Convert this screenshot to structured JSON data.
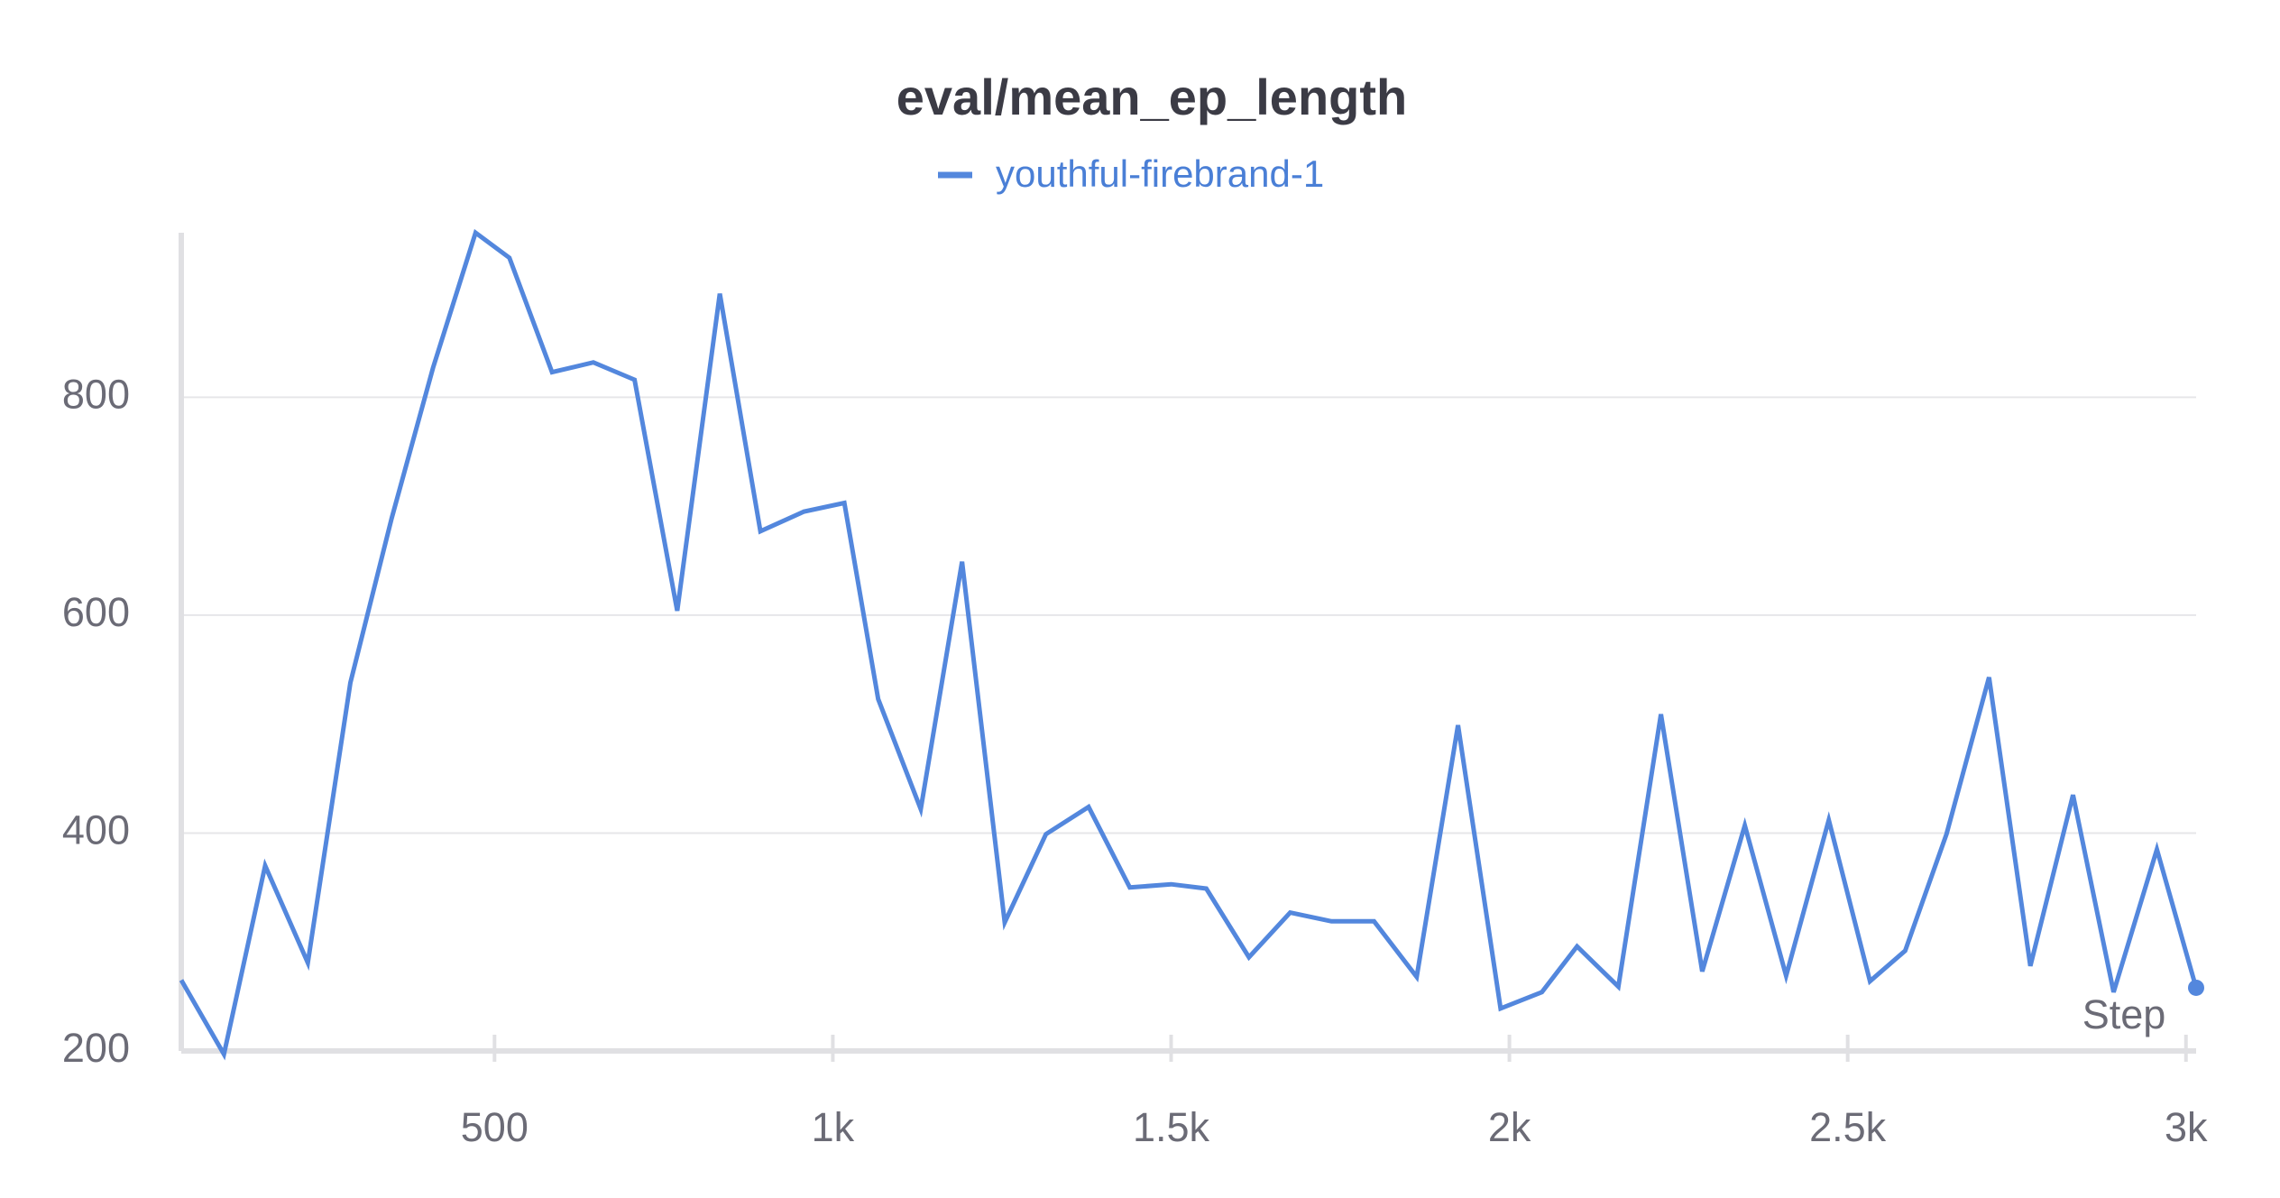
{
  "chart_data": {
    "type": "line",
    "title": "eval/mean_ep_length",
    "x_label": "Step",
    "x": [
      37,
      100,
      161,
      224,
      287,
      348,
      409,
      472,
      522,
      585,
      646,
      707,
      770,
      833,
      893,
      957,
      1017,
      1067,
      1130,
      1191,
      1254,
      1315,
      1378,
      1439,
      1500,
      1552,
      1615,
      1676,
      1737,
      1800,
      1863,
      1924,
      1987,
      2048,
      2100,
      2161,
      2224,
      2285,
      2348,
      2409,
      2472,
      2533,
      2585,
      2646,
      2709,
      2770,
      2833,
      2893,
      2957,
      3015
    ],
    "series": [
      {
        "name": "youthful-firebrand-1",
        "color": "#5387dd",
        "values": [
          265,
          197,
          370,
          281,
          538,
          689,
          827,
          951,
          928,
          823,
          832,
          816,
          604,
          895,
          677,
          695,
          703,
          523,
          422,
          649,
          318,
          399,
          424,
          350,
          353,
          349,
          286,
          327,
          319,
          319,
          268,
          499,
          239,
          254,
          296,
          259,
          509,
          273,
          407,
          269,
          412,
          264,
          292,
          399,
          543,
          278,
          435,
          254,
          385,
          258
        ]
      }
    ],
    "xlim": [
      37,
      3015
    ],
    "ylim": [
      200,
      951
    ],
    "xticks": [
      500,
      {
        "value": 1000,
        "label": "1k"
      },
      {
        "value": 1500,
        "label": "1.5k"
      },
      {
        "value": 2000,
        "label": "2k"
      },
      {
        "value": 2500,
        "label": "2.5k"
      },
      {
        "value": 3000,
        "label": "3k"
      }
    ],
    "yticks": [
      200,
      400,
      600,
      800
    ],
    "grid": true
  }
}
